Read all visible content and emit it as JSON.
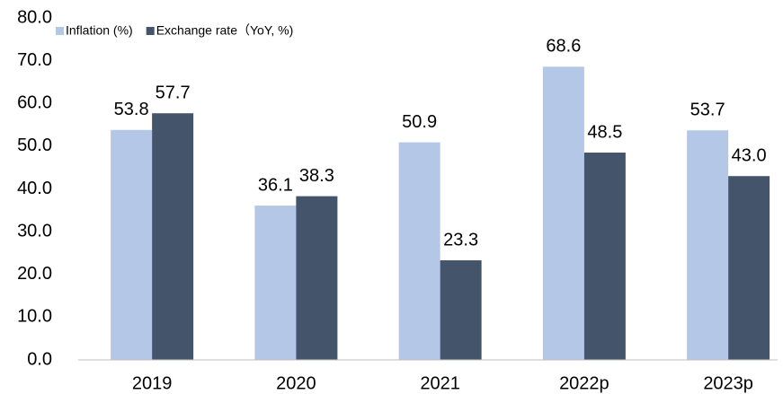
{
  "chart_data": {
    "type": "bar",
    "categories": [
      "2019",
      "2020",
      "2021",
      "2022p",
      "2023p"
    ],
    "series": [
      {
        "name": "Inflation (%)",
        "color": "#b4c7e7",
        "values": [
          53.8,
          36.1,
          50.9,
          68.6,
          53.7
        ],
        "value_labels": [
          "53.8",
          "36.1",
          "50.9",
          "68.6",
          "53.7"
        ]
      },
      {
        "name": "Exchange rate（YoY, %)",
        "color": "#44546a",
        "values": [
          57.7,
          38.3,
          23.3,
          48.5,
          43.0
        ],
        "value_labels": [
          "57.7",
          "38.3",
          "23.3",
          "48.5",
          "43.0"
        ]
      }
    ],
    "ylim": [
      0,
      80
    ],
    "yticks": [
      {
        "value": 0,
        "label": "0.0"
      },
      {
        "value": 10,
        "label": "10.0"
      },
      {
        "value": 20,
        "label": "20.0"
      },
      {
        "value": 30,
        "label": "30.0"
      },
      {
        "value": 40,
        "label": "40.0"
      },
      {
        "value": 50,
        "label": "50.0"
      },
      {
        "value": 60,
        "label": "60.0"
      },
      {
        "value": 70,
        "label": "70.0"
      },
      {
        "value": 80,
        "label": "80.0"
      }
    ],
    "legend": "top-left",
    "grid": false
  }
}
